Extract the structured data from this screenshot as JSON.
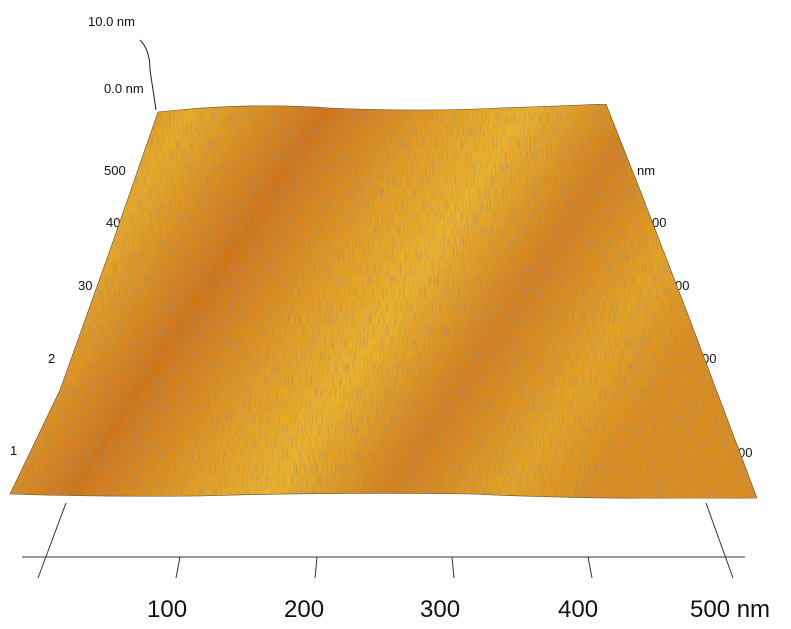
{
  "z_axis": {
    "top_label": "10.0 nm",
    "bottom_label": "0.0 nm"
  },
  "left_axis": {
    "labels": [
      "500",
      "40",
      "30",
      "2",
      "1"
    ]
  },
  "right_axis": {
    "labels": [
      "nm",
      "00",
      "00",
      "00",
      "00"
    ]
  },
  "bottom_axis": {
    "labels": [
      "100",
      "200",
      "300",
      "400",
      "500 nm"
    ]
  }
}
